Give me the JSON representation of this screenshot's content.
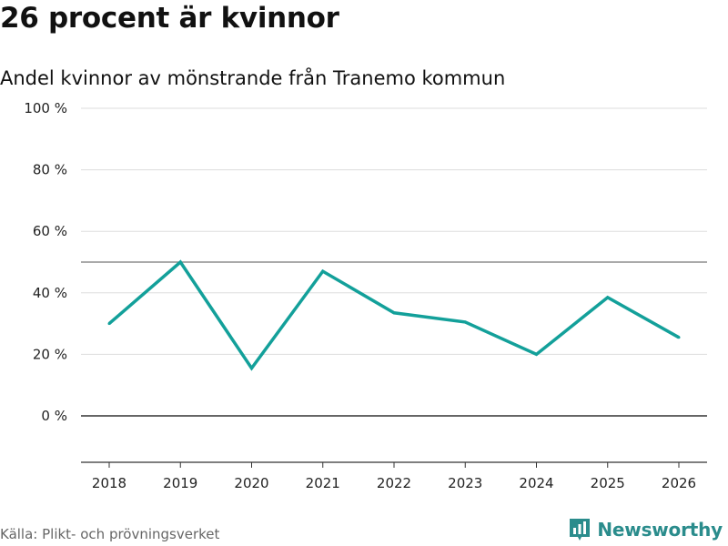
{
  "header": {
    "title": "26 procent är kvinnor",
    "subtitle": "Andel kvinnor av mönstrande från Tranemo kommun"
  },
  "footer": {
    "source": "Källa: Plikt- och prövningsverket",
    "brand": "Newsworthy",
    "brand_icon": "bar-chart-logo-icon"
  },
  "colors": {
    "line": "#13a09a",
    "grid": "#dddddd",
    "zero_line": "#333333",
    "reference_line": "#777777",
    "brand": "#2a8c8c"
  },
  "chart_data": {
    "type": "line",
    "title": "26 procent är kvinnor",
    "subtitle": "Andel kvinnor av mönstrande från Tranemo kommun",
    "xlabel": "",
    "ylabel": "",
    "x": [
      "2018",
      "2019",
      "2020",
      "2021",
      "2022",
      "2023",
      "2024",
      "2025",
      "2026"
    ],
    "series": [
      {
        "values": [
          30,
          50,
          15.5,
          47,
          33.5,
          30.5,
          20,
          38.5,
          25.5
        ]
      }
    ],
    "yticks": [
      0,
      20,
      40,
      60,
      80,
      100
    ],
    "ytick_labels": [
      "0 %",
      "20 %",
      "40 %",
      "60 %",
      "80 %",
      "100 %"
    ],
    "ylim": [
      -15,
      100
    ],
    "reference_line": 50,
    "grid": true,
    "legend": "none"
  }
}
